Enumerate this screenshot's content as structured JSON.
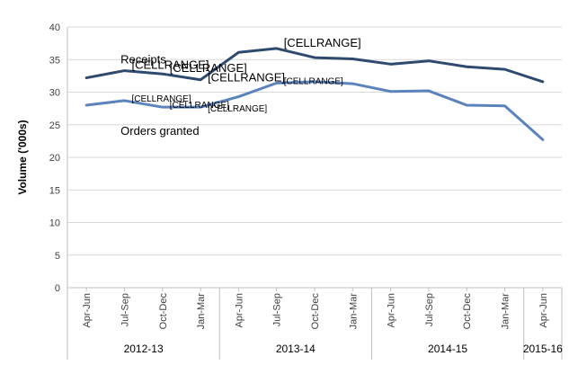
{
  "chart_data": {
    "type": "line",
    "ylabel": "Volume ('000s)",
    "ylim": [
      0,
      40
    ],
    "yticks": [
      0,
      5,
      10,
      15,
      20,
      25,
      30,
      35,
      40
    ],
    "grid": true,
    "categories": [
      "Apr-Jun",
      "Jul-Sep",
      "Oct-Dec",
      "Jan-Mar",
      "Apr-Jun",
      "Jul-Sep",
      "Oct-Dec",
      "Jan-Mar",
      "Apr-Jun",
      "Jul-Sep",
      "Oct-Dec",
      "Jan-Mar",
      "Apr-Jun"
    ],
    "groups": [
      {
        "label": "2012-13",
        "count": 4
      },
      {
        "label": "2013-14",
        "count": 4
      },
      {
        "label": "2014-15",
        "count": 4
      },
      {
        "label": "2015-16",
        "count": 1
      }
    ],
    "series": [
      {
        "name": "Receipts",
        "color": "#2e4a6e",
        "values": [
          32.2,
          33.3,
          32.8,
          31.9,
          36.1,
          36.7,
          35.3,
          35.1,
          34.3,
          34.8,
          33.9,
          33.5,
          31.6
        ]
      },
      {
        "name": "Orders granted",
        "color": "#5b84bf",
        "values": [
          28.0,
          28.7,
          27.7,
          27.7,
          29.3,
          31.4,
          31.6,
          31.3,
          30.1,
          30.2,
          28.0,
          27.9,
          22.7
        ]
      }
    ],
    "annotations": [
      {
        "series": 0,
        "index": 1,
        "text": "[CELLRANGE]",
        "size": "large"
      },
      {
        "series": 0,
        "index": 2,
        "text": "[CELLRANGE]",
        "size": "large"
      },
      {
        "series": 0,
        "index": 3,
        "text": "[CELLRANGE]",
        "size": "large"
      },
      {
        "series": 0,
        "index": 5,
        "text": "[CELLRANGE]",
        "size": "large"
      },
      {
        "series": 1,
        "index": 1,
        "text": "[CELLRANGE]",
        "size": "small"
      },
      {
        "series": 1,
        "index": 2,
        "text": "[CELLRANGE]",
        "size": "small"
      },
      {
        "series": 1,
        "index": 3,
        "text": "[CELLRANGE]",
        "size": "small"
      },
      {
        "series": 1,
        "index": 5,
        "text": "[CELLRANGE]",
        "size": "small"
      }
    ]
  }
}
